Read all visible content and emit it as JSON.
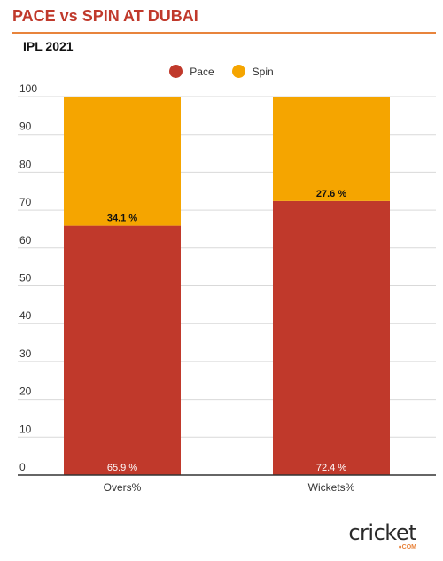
{
  "header": {
    "title": "PACE vs SPIN AT DUBAI",
    "subtitle": "IPL 2021"
  },
  "colors": {
    "pace": "#c0392b",
    "spin": "#f5a500",
    "accent": "#e8843c",
    "grid": "#d9d9d9",
    "axis": "#333333"
  },
  "chart_data": {
    "type": "bar",
    "stacked": true,
    "categories": [
      "Overs%",
      "Wickets%"
    ],
    "series": [
      {
        "name": "Pace",
        "values": [
          65.9,
          72.4
        ],
        "labels": [
          "65.9 %",
          "72.4 %"
        ]
      },
      {
        "name": "Spin",
        "values": [
          34.1,
          27.6
        ],
        "labels": [
          "34.1 %",
          "27.6 %"
        ]
      }
    ],
    "y_ticks": [
      "0",
      "10",
      "20",
      "30",
      "40",
      "50",
      "60",
      "70",
      "80",
      "90",
      "100"
    ],
    "ylim": [
      0,
      100
    ],
    "legend_position": "top-center",
    "grid": true
  },
  "branding": {
    "logo_text": "cricket",
    "logo_sub": "●COM"
  }
}
